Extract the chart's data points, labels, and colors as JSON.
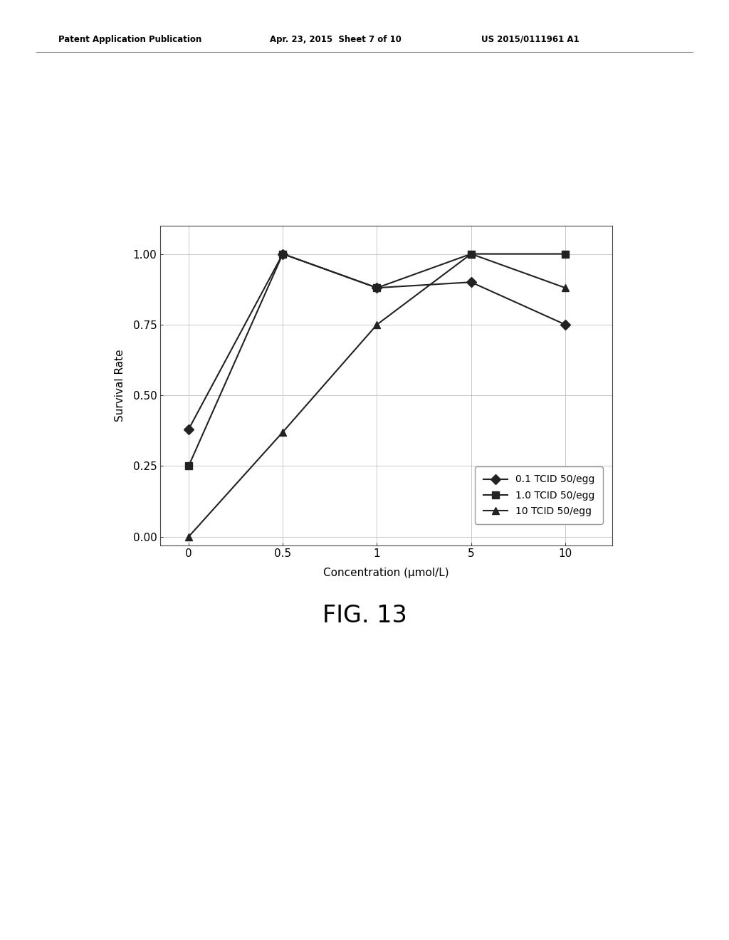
{
  "x_positions": [
    0,
    1,
    2,
    3,
    4
  ],
  "x_values": [
    0,
    0.5,
    1,
    5,
    10
  ],
  "series": [
    {
      "label": "0.1 TCID 50/egg",
      "y_values": [
        0.38,
        1.0,
        0.88,
        0.9,
        0.75
      ],
      "marker": "D",
      "color": "#222222",
      "linestyle": "-"
    },
    {
      "label": "1.0 TCID 50/egg",
      "y_values": [
        0.25,
        1.0,
        0.88,
        1.0,
        1.0
      ],
      "marker": "s",
      "color": "#222222",
      "linestyle": "-"
    },
    {
      "label": "10 TCID 50/egg",
      "y_values": [
        0.0,
        0.37,
        0.75,
        1.0,
        0.88
      ],
      "marker": "^",
      "color": "#222222",
      "linestyle": "-"
    }
  ],
  "xlabel": "Concentration (μmol/L)",
  "ylabel": "Survival Rate",
  "yticks": [
    0.0,
    0.25,
    0.5,
    0.75,
    1.0
  ],
  "xticklabels": [
    "0",
    "0.5",
    "1",
    "5",
    "10"
  ],
  "ylim": [
    -0.03,
    1.1
  ],
  "xlim": [
    -0.3,
    4.5
  ],
  "fig_caption": "FIG. 13",
  "patent_header_left": "Patent Application Publication",
  "patent_header_mid": "Apr. 23, 2015  Sheet 7 of 10",
  "patent_header_right": "US 2015/0111961 A1",
  "background_color": "#ffffff",
  "grid_color": "#bbbbbb",
  "line_color": "#444444",
  "font_color": "#000000",
  "marker_size": 7,
  "linewidth": 1.5
}
